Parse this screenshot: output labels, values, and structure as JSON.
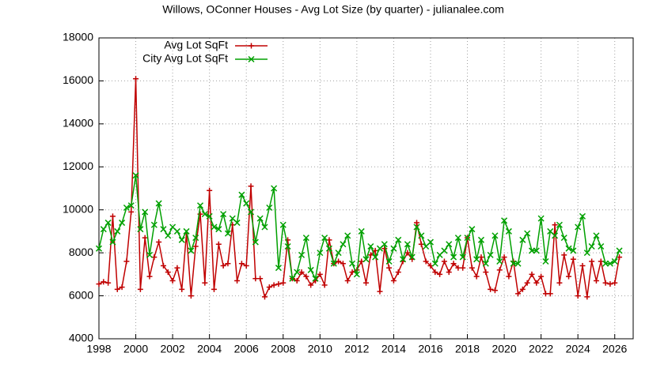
{
  "chart_data": {
    "type": "line",
    "title": "Willows, OConner Houses - Avg Lot Size (by quarter) - julianalee.com",
    "x": [
      1998,
      1998.25,
      1998.5,
      1998.75,
      1999,
      1999.25,
      1999.5,
      1999.75,
      2000,
      2000.25,
      2000.5,
      2000.75,
      2001,
      2001.25,
      2001.5,
      2001.75,
      2002,
      2002.25,
      2002.5,
      2002.75,
      2003,
      2003.25,
      2003.5,
      2003.75,
      2004,
      2004.25,
      2004.5,
      2004.75,
      2005,
      2005.25,
      2005.5,
      2005.75,
      2006,
      2006.25,
      2006.5,
      2006.75,
      2007,
      2007.25,
      2007.5,
      2007.75,
      2008,
      2008.25,
      2008.5,
      2008.75,
      2009,
      2009.25,
      2009.5,
      2009.75,
      2010,
      2010.25,
      2010.5,
      2010.75,
      2011,
      2011.25,
      2011.5,
      2011.75,
      2012,
      2012.25,
      2012.5,
      2012.75,
      2013,
      2013.25,
      2013.5,
      2013.75,
      2014,
      2014.25,
      2014.5,
      2014.75,
      2015,
      2015.25,
      2015.5,
      2015.75,
      2016,
      2016.25,
      2016.5,
      2016.75,
      2017,
      2017.25,
      2017.5,
      2017.75,
      2018,
      2018.25,
      2018.5,
      2018.75,
      2019,
      2019.25,
      2019.5,
      2019.75,
      2020,
      2020.25,
      2020.5,
      2020.75,
      2021,
      2021.25,
      2021.5,
      2021.75,
      2022,
      2022.25,
      2022.5,
      2022.75,
      2023,
      2023.25,
      2023.5,
      2023.75,
      2024,
      2024.25,
      2024.5,
      2024.75,
      2025,
      2025.25,
      2025.5,
      2025.75,
      2026,
      2026.25
    ],
    "series": [
      {
        "name": "Avg Lot SqFt",
        "color": "#c00000",
        "marker": "plus",
        "values": [
          6550,
          6650,
          6600,
          9700,
          6300,
          6400,
          7600,
          9900,
          16100,
          6300,
          8700,
          6900,
          7800,
          8500,
          7400,
          7100,
          6700,
          7300,
          6300,
          8900,
          6000,
          8300,
          9800,
          6600,
          10900,
          6300,
          8400,
          7400,
          7500,
          9300,
          6700,
          7500,
          7400,
          11100,
          6800,
          6800,
          5950,
          6400,
          6500,
          6550,
          6600,
          8600,
          6800,
          6700,
          7100,
          6900,
          6500,
          6700,
          7000,
          6500,
          8600,
          7500,
          7600,
          7500,
          6700,
          7100,
          7200,
          7600,
          6600,
          7900,
          8100,
          6200,
          8200,
          7300,
          6700,
          7100,
          7600,
          8000,
          7700,
          9400,
          8400,
          7600,
          7400,
          7100,
          7000,
          7600,
          7100,
          7500,
          7300,
          7300,
          8700,
          7300,
          6900,
          7800,
          7100,
          6300,
          6250,
          7200,
          7800,
          6900,
          7600,
          6100,
          6300,
          6600,
          7000,
          6600,
          6900,
          6100,
          6100,
          9300,
          6600,
          7900,
          6900,
          7700,
          6000,
          7400,
          5950,
          7600,
          6700,
          7600,
          6600,
          6550,
          6600,
          7800
        ]
      },
      {
        "name": "City Avg Lot SqFt",
        "color": "#00a000",
        "marker": "cross",
        "values": [
          8200,
          9100,
          9400,
          8500,
          9000,
          9400,
          10100,
          10200,
          11600,
          9100,
          9900,
          7900,
          9300,
          10300,
          9100,
          8800,
          9200,
          9000,
          8600,
          9000,
          8100,
          8700,
          10200,
          9800,
          9700,
          9200,
          9100,
          9800,
          8900,
          9600,
          9400,
          10700,
          10300,
          9900,
          8500,
          9600,
          9200,
          10100,
          11000,
          7300,
          9300,
          8300,
          6800,
          7100,
          7900,
          8700,
          7200,
          6800,
          8000,
          8700,
          8200,
          7500,
          8000,
          8400,
          8800,
          7500,
          7000,
          9000,
          7700,
          8300,
          7800,
          8200,
          8400,
          7600,
          8200,
          8600,
          7700,
          8400,
          7800,
          9200,
          8800,
          8300,
          8500,
          7500,
          7900,
          8100,
          8400,
          7800,
          8700,
          7800,
          8700,
          9100,
          7700,
          8600,
          7500,
          7900,
          8800,
          7600,
          9500,
          9000,
          7500,
          7500,
          8600,
          8900,
          8100,
          8100,
          9600,
          7600,
          9000,
          8800,
          9300,
          8700,
          8200,
          8100,
          9200,
          9700,
          8000,
          8300,
          8800,
          8300,
          7500,
          7500,
          7600,
          8100
        ]
      }
    ],
    "xlim": [
      1998,
      2027
    ],
    "ylim": [
      4000,
      18000
    ],
    "xticks": [
      1998,
      2000,
      2002,
      2004,
      2006,
      2008,
      2010,
      2012,
      2014,
      2016,
      2018,
      2020,
      2022,
      2024,
      2026
    ],
    "yticks": [
      4000,
      6000,
      8000,
      10000,
      12000,
      14000,
      16000,
      18000
    ],
    "grid": true,
    "legend": "top-left"
  }
}
